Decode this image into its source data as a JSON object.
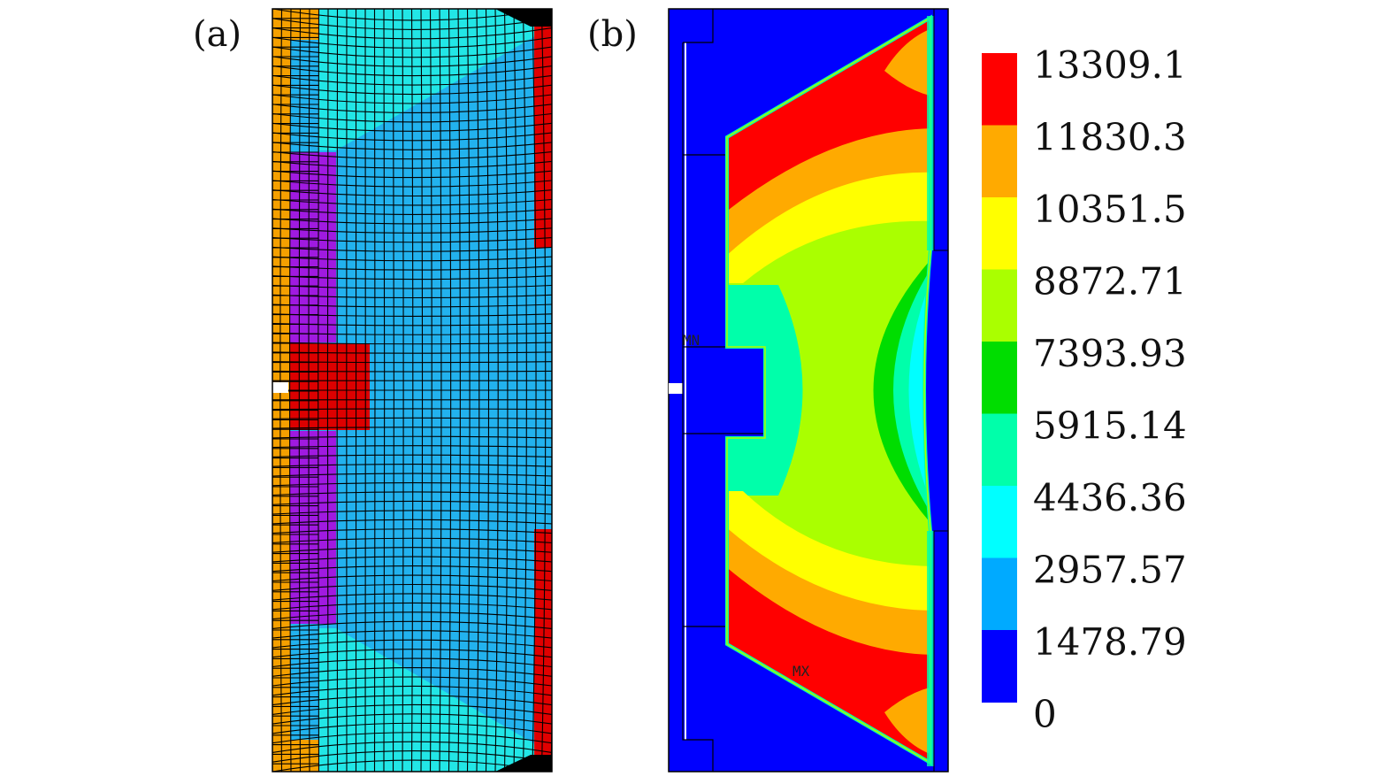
{
  "panel_a": {
    "label": "(a)"
  },
  "panel_b": {
    "label": "(b)",
    "min_marker": "MN",
    "max_marker": "MX"
  },
  "legend": {
    "values": [
      "13309.1",
      "11830.3",
      "10351.5",
      "8872.71",
      "7393.93",
      "5915.14",
      "4436.36",
      "2957.57",
      "1478.79",
      "0"
    ],
    "colors": [
      "#ff0000",
      "#ffaa00",
      "#ffff00",
      "#aaff00",
      "#00dd00",
      "#00ffaa",
      "#00ffff",
      "#00aaff",
      "#0000ff"
    ]
  },
  "colors": {
    "background_blue": "#0000ff",
    "mesh_blue": "#22b2ee",
    "mesh_cyan": "#22e6e6",
    "mesh_orange": "#f5a000",
    "mesh_purple": "#a01ae0",
    "mesh_red": "#e00000"
  }
}
